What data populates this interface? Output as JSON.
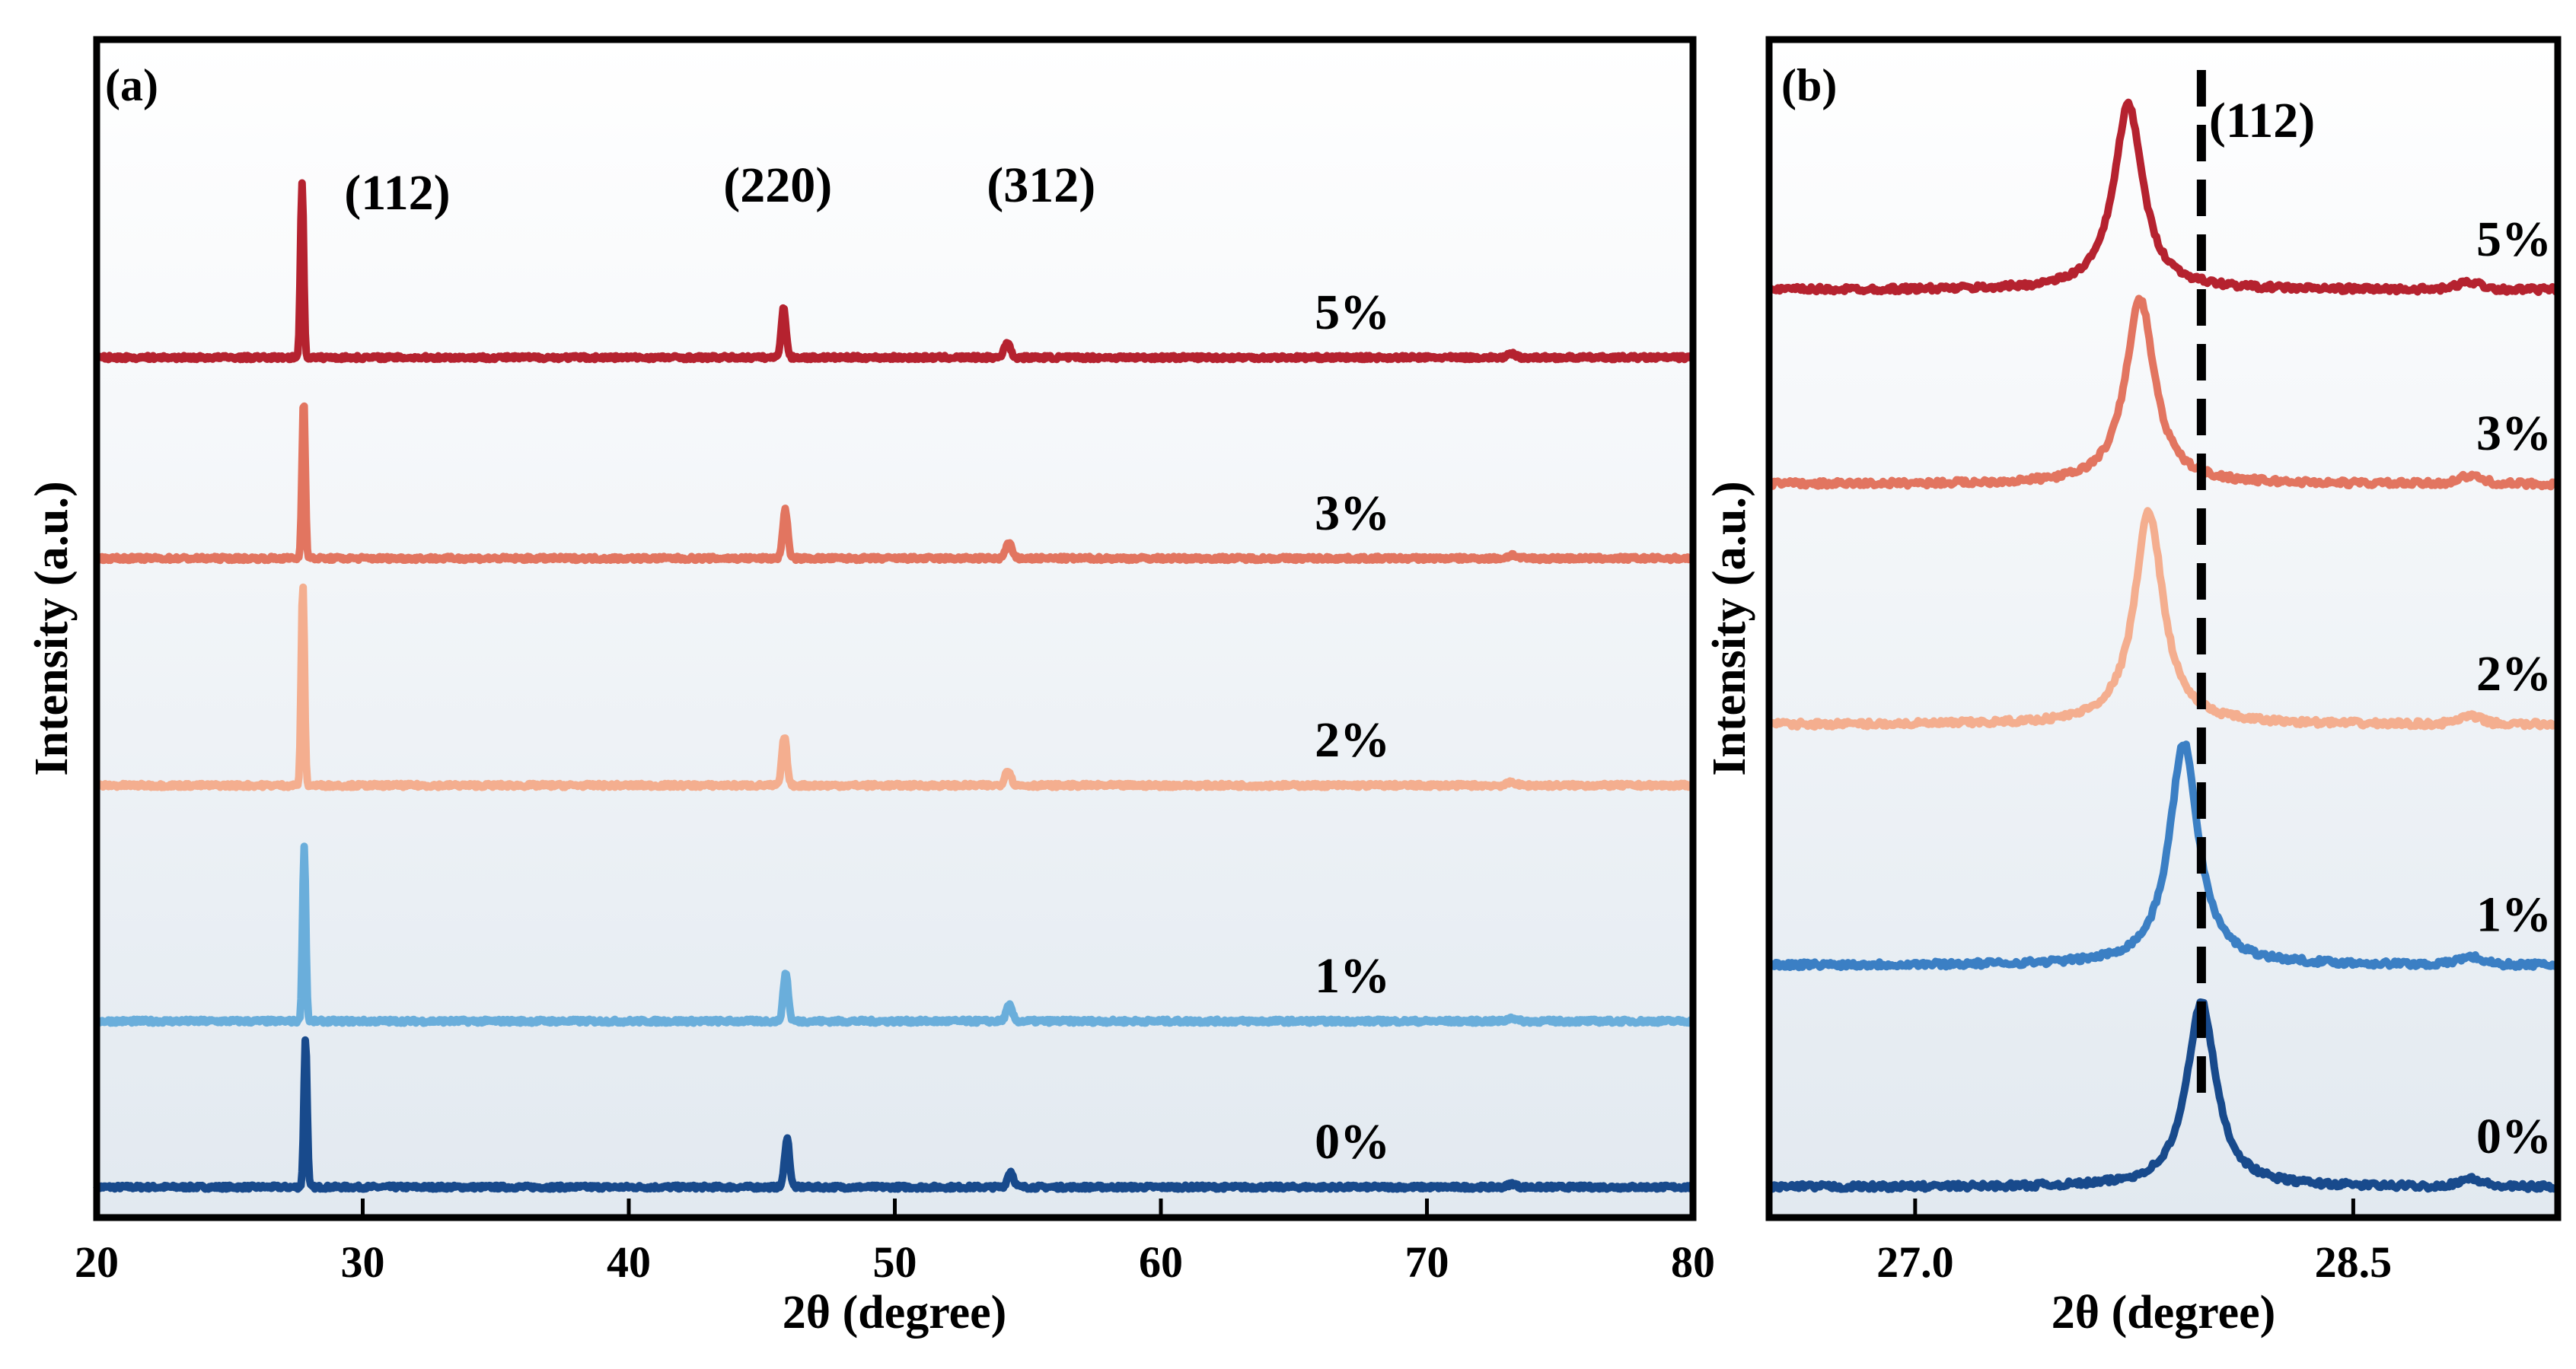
{
  "chart_data": [
    {
      "type": "line",
      "panel_label": "(a)",
      "xlabel": "2θ (degree)",
      "ylabel": "Intensity (a.u.)",
      "xlim": [
        20,
        80
      ],
      "xticks": [
        "20",
        "30",
        "40",
        "50",
        "60",
        "70",
        "80"
      ],
      "ylim": [
        0,
        6.1
      ],
      "yticks_shown": false,
      "grid": false,
      "background": "vertical white-to-light-blue gradient",
      "peak_labels": [
        {
          "text": "(112)",
          "x": 27.8
        },
        {
          "text": "(220)",
          "x": 45.9
        },
        {
          "text": "(312)",
          "x": 54.3
        }
      ],
      "peaks_2theta": [
        27.8,
        45.9,
        54.3
      ],
      "peak_heights": [
        1.0,
        0.27,
        0.12
      ],
      "series": [
        {
          "name": "0%",
          "color": "#184a8c",
          "baseline": 0.0,
          "peak_center": 27.85,
          "main_peak_height": 0.85
        },
        {
          "name": "1%",
          "color": "#6aaedb",
          "baseline": 0.95,
          "peak_center": 27.8,
          "main_peak_height": 1.0
        },
        {
          "name": "2%",
          "color": "#f4ae8f",
          "baseline": 2.3,
          "peak_center": 27.75,
          "main_peak_height": 1.16
        },
        {
          "name": "3%",
          "color": "#e27560",
          "baseline": 3.6,
          "peak_center": 27.78,
          "main_peak_height": 0.92
        },
        {
          "name": "5%",
          "color": "#b5222f",
          "baseline": 4.75,
          "peak_center": 27.72,
          "main_peak_height": 1.0
        }
      ]
    },
    {
      "type": "line",
      "panel_label": "(b)",
      "xlabel": "2θ (degree)",
      "ylabel": "Intensity (a.u.)",
      "xlim": [
        26.5,
        29.2
      ],
      "xticks": [
        "27.0",
        "28.5"
      ],
      "ylim": [
        0,
        5.8
      ],
      "yticks_shown": false,
      "grid": false,
      "background": "vertical white-to-light-blue gradient",
      "reference_line": {
        "x": 27.98,
        "label": "(112)",
        "style": "dashed"
      },
      "series": [
        {
          "name": "0%",
          "color": "#184a8c",
          "baseline": 0.0,
          "peak_center": 27.98,
          "peak_height": 1.0,
          "fwhm": 0.12
        },
        {
          "name": "1%",
          "color": "#3b7fc4",
          "baseline": 1.2,
          "peak_center": 27.92,
          "peak_height": 1.2,
          "fwhm": 0.12
        },
        {
          "name": "2%",
          "color": "#f4ae8f",
          "baseline": 2.5,
          "peak_center": 27.8,
          "peak_height": 1.15,
          "fwhm": 0.12
        },
        {
          "name": "3%",
          "color": "#e27560",
          "baseline": 3.8,
          "peak_center": 27.77,
          "peak_height": 1.0,
          "fwhm": 0.12
        },
        {
          "name": "5%",
          "color": "#b5222f",
          "baseline": 4.85,
          "peak_center": 27.73,
          "peak_height": 1.0,
          "fwhm": 0.12
        }
      ]
    }
  ]
}
